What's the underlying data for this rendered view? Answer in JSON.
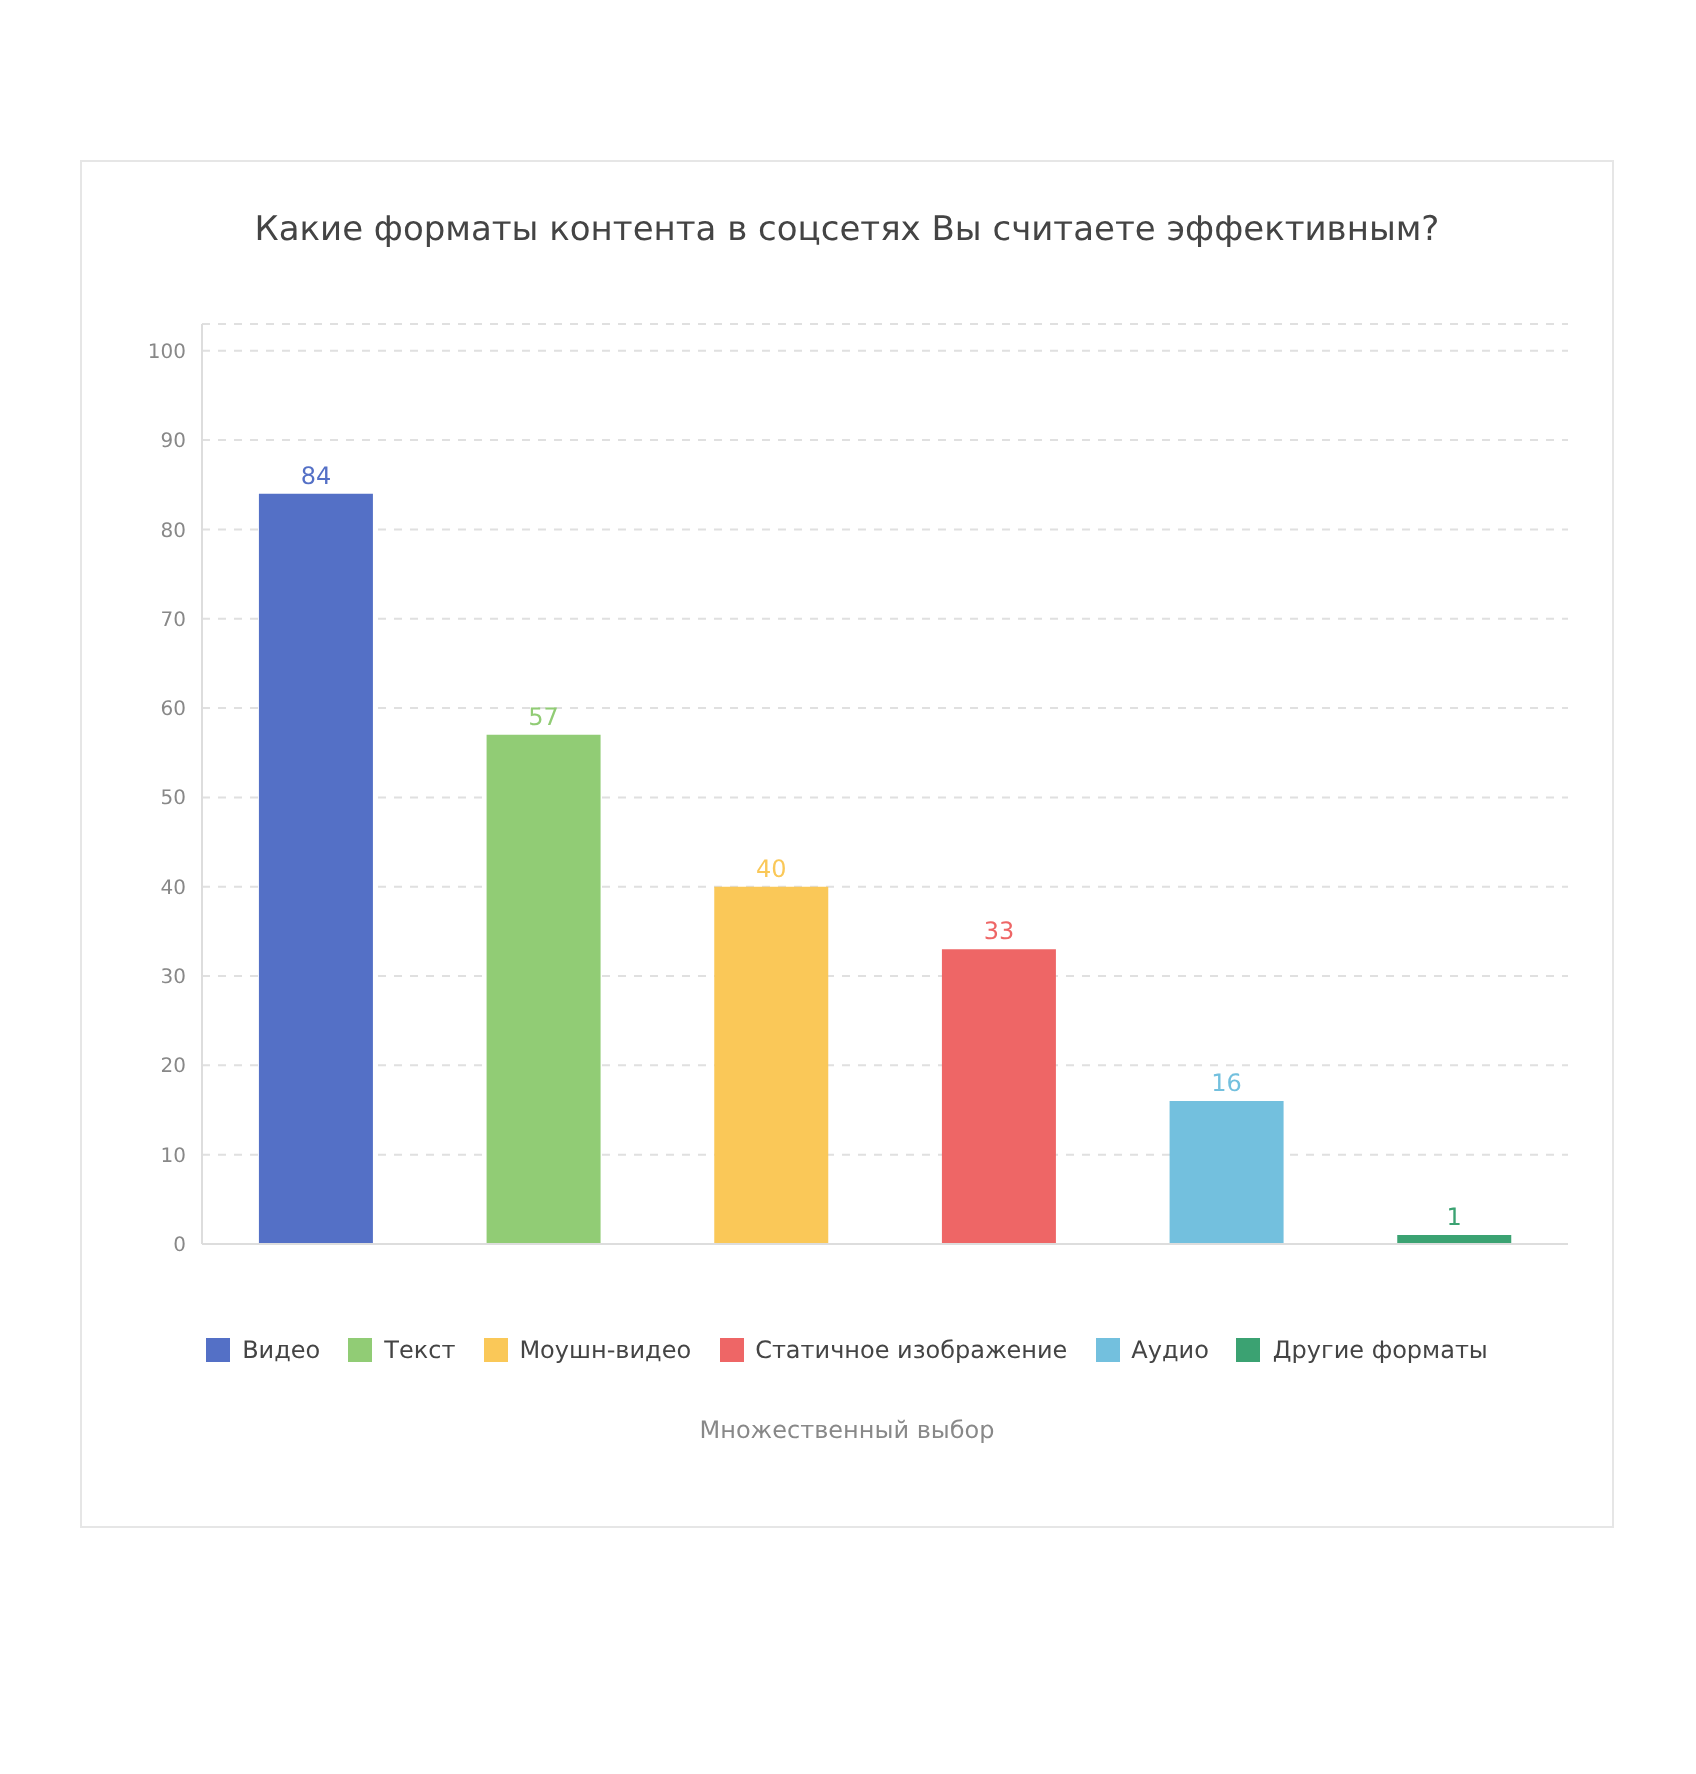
{
  "chart_data": {
    "type": "bar",
    "title": "Какие форматы контента в соцсетях Вы считаете эффективным?",
    "categories": [
      null,
      null,
      null,
      null,
      null,
      null
    ],
    "series": [
      {
        "name": "Видео",
        "color": "#5470c6",
        "values": [
          84,
          null,
          null,
          null,
          null,
          null
        ]
      },
      {
        "name": "Текст",
        "color": "#91cc75",
        "values": [
          null,
          57,
          null,
          null,
          null,
          null
        ]
      },
      {
        "name": "Моушн-видео",
        "color": "#fac858",
        "values": [
          null,
          null,
          40,
          null,
          null,
          null
        ]
      },
      {
        "name": "Статичное изображение",
        "color": "#ee6666",
        "values": [
          null,
          null,
          null,
          33,
          null,
          null
        ]
      },
      {
        "name": "Аудио",
        "color": "#73c0de",
        "values": [
          null,
          null,
          null,
          null,
          16,
          null
        ]
      },
      {
        "name": "Другие форматы",
        "color": "#3ba272",
        "values": [
          null,
          null,
          null,
          null,
          null,
          1
        ]
      }
    ],
    "stacked": true,
    "ylim": [
      0,
      103
    ],
    "yticks": [
      0,
      10,
      20,
      30,
      40,
      50,
      60,
      70,
      80,
      90,
      100
    ],
    "grid": "y",
    "legend": "bottom",
    "data_labels": true,
    "tick_labels": "y",
    "annotations": [
      "Множественный выбор"
    ]
  }
}
